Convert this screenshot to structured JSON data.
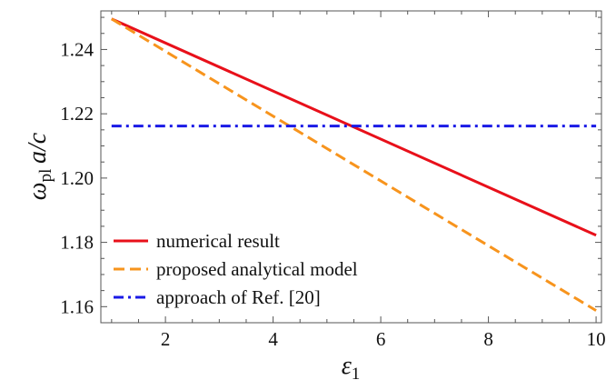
{
  "chart_data": {
    "type": "line",
    "xlabel": "ε1",
    "ylabel": "ωpl a/c",
    "xlim": [
      0.8,
      10.1
    ],
    "ylim": [
      1.155,
      1.252
    ],
    "xticks": [
      2,
      4,
      6,
      8,
      10
    ],
    "xtick_labels": [
      "2",
      "4",
      "6",
      "8",
      "10"
    ],
    "yticks": [
      1.16,
      1.18,
      1.2,
      1.22,
      1.24
    ],
    "ytick_labels": [
      "1.16",
      "1.18",
      "1.20",
      "1.22",
      "1.24"
    ],
    "grid": false,
    "legend_position": "bottom-left",
    "series": [
      {
        "name": "numerical result",
        "color": "#e8101a",
        "style": "solid",
        "x": [
          1,
          10
        ],
        "y": [
          1.2495,
          1.1822
        ]
      },
      {
        "name": "proposed analytical model",
        "color": "#f7941d",
        "style": "dashed",
        "x": [
          1,
          10
        ],
        "y": [
          1.2495,
          1.1588
        ]
      },
      {
        "name": "approach of Ref. [20]",
        "color": "#1a1ae6",
        "style": "dashdot",
        "x": [
          1,
          10
        ],
        "y": [
          1.2162,
          1.2162
        ]
      }
    ]
  }
}
